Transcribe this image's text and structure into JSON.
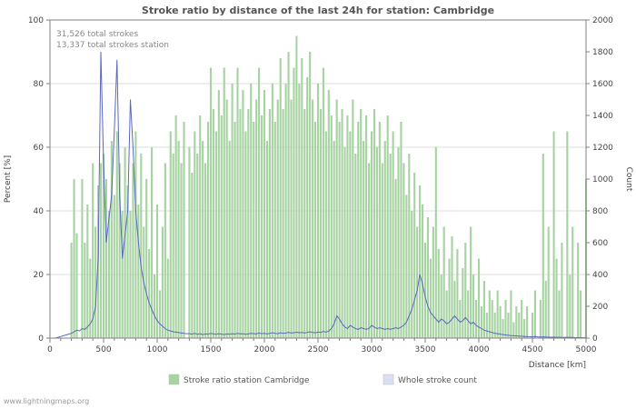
{
  "page": {
    "watermark": "www.lightningmaps.org"
  },
  "chart_data": {
    "type": "bar",
    "title": "Stroke ratio by distance of the last 24h for station: Cambridge",
    "annotations": [
      "31,526 total strokes",
      "13,337 total strokes station"
    ],
    "xlabel": "Distance   [km]",
    "ylabel_left": "Percent   [%]",
    "ylabel_right": "Count",
    "xlim": [
      0,
      5000
    ],
    "ylim_left": [
      0,
      100
    ],
    "ylim_right": [
      0,
      2000
    ],
    "x_tick_step": 500,
    "x_minor_tick_step": 100,
    "y_left_tick_step": 20,
    "y_right_tick_step": 200,
    "x_start": 0,
    "x_step": 25,
    "grid": true,
    "legend_position": "bottom",
    "series": [
      {
        "name": "Stroke ratio station Cambridge",
        "type": "bar",
        "axis": "left",
        "color": "#a7d3a2",
        "legend_color": "#a7d3a2",
        "values": [
          0,
          0,
          0,
          0,
          0,
          0,
          0,
          0,
          30,
          50,
          33,
          0,
          50,
          30,
          42,
          25,
          55,
          35,
          48,
          55,
          58,
          50,
          40,
          62,
          45,
          65,
          55,
          40,
          60,
          48,
          40,
          55,
          65,
          42,
          58,
          35,
          50,
          28,
          60,
          20,
          42,
          15,
          35,
          55,
          25,
          65,
          58,
          70,
          62,
          55,
          68,
          0,
          60,
          52,
          65,
          58,
          70,
          62,
          55,
          68,
          85,
          72,
          65,
          78,
          70,
          85,
          75,
          62,
          80,
          68,
          85,
          72,
          78,
          65,
          72,
          80,
          68,
          75,
          85,
          70,
          78,
          62,
          72,
          80,
          68,
          75,
          88,
          72,
          80,
          90,
          75,
          85,
          95,
          80,
          88,
          72,
          82,
          90,
          75,
          68,
          80,
          72,
          85,
          65,
          78,
          70,
          62,
          75,
          68,
          72,
          60,
          70,
          65,
          75,
          58,
          68,
          72,
          62,
          70,
          55,
          65,
          72,
          60,
          68,
          55,
          62,
          70,
          58,
          65,
          50,
          60,
          68,
          55,
          45,
          58,
          40,
          52,
          35,
          48,
          42,
          30,
          38,
          25,
          35,
          60,
          28,
          20,
          35,
          15,
          25,
          32,
          18,
          28,
          12,
          22,
          30,
          15,
          35,
          20,
          12,
          25,
          10,
          18,
          8,
          15,
          12,
          8,
          15,
          10,
          6,
          12,
          8,
          15,
          5,
          10,
          8,
          12,
          6,
          10,
          0,
          8,
          15,
          0,
          12,
          58,
          18,
          35,
          0,
          65,
          25,
          15,
          30,
          0,
          65,
          20,
          35,
          0,
          30,
          15,
          0,
          50
        ]
      },
      {
        "name": "Whole stroke count",
        "type": "line",
        "axis": "right",
        "color": "#5a68c0",
        "legend_color": "#dcdef2",
        "values": [
          0,
          0,
          0,
          5,
          10,
          15,
          20,
          25,
          30,
          40,
          50,
          45,
          60,
          55,
          70,
          90,
          120,
          200,
          500,
          1800,
          1100,
          600,
          750,
          900,
          1300,
          1750,
          900,
          500,
          650,
          800,
          1500,
          1200,
          800,
          600,
          450,
          350,
          280,
          220,
          180,
          140,
          110,
          90,
          75,
          60,
          50,
          45,
          40,
          38,
          35,
          32,
          30,
          28,
          28,
          25,
          30,
          24,
          28,
          22,
          26,
          24,
          30,
          26,
          24,
          28,
          25,
          22,
          26,
          24,
          28,
          25,
          30,
          26,
          28,
          24,
          26,
          30,
          28,
          26,
          32,
          28,
          30,
          26,
          30,
          34,
          30,
          28,
          34,
          30,
          32,
          36,
          32,
          34,
          38,
          34,
          36,
          32,
          36,
          40,
          36,
          34,
          38,
          36,
          42,
          38,
          44,
          60,
          90,
          140,
          120,
          90,
          70,
          60,
          80,
          70,
          60,
          55,
          65,
          60,
          55,
          60,
          80,
          70,
          60,
          65,
          60,
          55,
          60,
          55,
          60,
          65,
          60,
          70,
          80,
          100,
          140,
          180,
          240,
          300,
          400,
          340,
          260,
          200,
          160,
          140,
          120,
          100,
          120,
          110,
          90,
          100,
          120,
          140,
          120,
          100,
          110,
          130,
          110,
          90,
          100,
          80,
          70,
          60,
          50,
          45,
          40,
          35,
          30,
          28,
          25,
          22,
          20,
          18,
          16,
          15,
          14,
          12,
          12,
          10,
          10,
          8,
          8,
          10,
          8,
          6,
          8,
          6,
          6,
          5,
          6,
          5,
          5,
          4,
          4,
          5,
          4,
          4,
          3,
          3,
          3,
          2,
          2
        ]
      }
    ]
  }
}
